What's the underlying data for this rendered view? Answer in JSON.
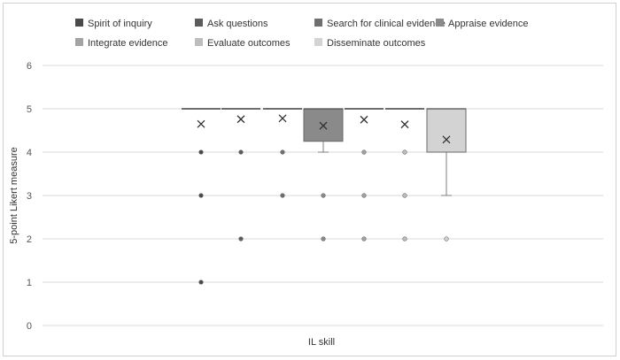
{
  "chart_data": {
    "type": "box",
    "ylabel": "5-point Likert measure",
    "xlabel": "IL skill",
    "ylim": [
      0,
      6
    ],
    "yticks": [
      0,
      1,
      2,
      3,
      4,
      5,
      6
    ],
    "grid": true,
    "legend_position": "top",
    "series": [
      {
        "name": "Spirit of inquiry",
        "color": "#4a4a4a",
        "q1": 5,
        "median": 5,
        "q3": 5,
        "whisker_low": 5,
        "whisker_high": 5,
        "mean": 4.65,
        "outliers": [
          4,
          3,
          1
        ]
      },
      {
        "name": "Ask questions",
        "color": "#5c5c5c",
        "q1": 5,
        "median": 5,
        "q3": 5,
        "whisker_low": 5,
        "whisker_high": 5,
        "mean": 4.76,
        "outliers": [
          4,
          2
        ]
      },
      {
        "name": "Search for clinical evidence",
        "color": "#6f6f6f",
        "q1": 5,
        "median": 5,
        "q3": 5,
        "whisker_low": 5,
        "whisker_high": 5,
        "mean": 4.78,
        "outliers": [
          4,
          3
        ]
      },
      {
        "name": "Appraise evidence",
        "color": "#8a8a8a",
        "q1": 4.25,
        "median": 5,
        "q3": 5,
        "whisker_low": 4,
        "whisker_high": 5,
        "mean": 4.61,
        "outliers": [
          3,
          2
        ]
      },
      {
        "name": "Integrate evidence",
        "color": "#a3a3a3",
        "q1": 5,
        "median": 5,
        "q3": 5,
        "whisker_low": 5,
        "whisker_high": 5,
        "mean": 4.75,
        "outliers": [
          4,
          3,
          2
        ]
      },
      {
        "name": "Evaluate outcomes",
        "color": "#bdbdbd",
        "q1": 5,
        "median": 5,
        "q3": 5,
        "whisker_low": 5,
        "whisker_high": 5,
        "mean": 4.64,
        "outliers": [
          4,
          3,
          2
        ]
      },
      {
        "name": "Disseminate outcomes",
        "color": "#d3d3d3",
        "q1": 4,
        "median": 5,
        "q3": 5,
        "whisker_low": 3,
        "whisker_high": 5,
        "mean": 4.29,
        "outliers": [
          2
        ]
      }
    ]
  }
}
